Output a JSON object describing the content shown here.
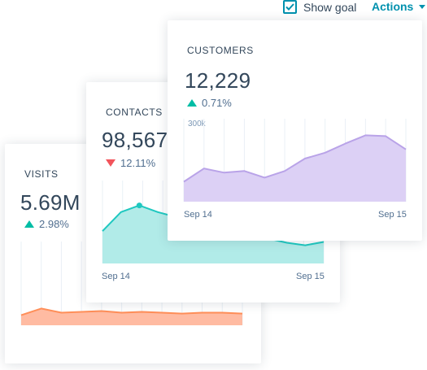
{
  "toolbar": {
    "show_goal_label": "Show goal",
    "show_goal_checked": true,
    "actions_label": "Actions"
  },
  "colors": {
    "accent": "#0091ae",
    "up": "#00bda5",
    "down": "#f2545b",
    "visits": "#ff8f59",
    "contacts": "#00bda5",
    "customers": "#b9a3e8"
  },
  "cards": {
    "visits": {
      "title": "VISITS",
      "value": "5.69M",
      "change": "2.98%",
      "direction": "up"
    },
    "contacts": {
      "title": "CONTACTS",
      "value": "98,567",
      "change": "12.11%",
      "direction": "down",
      "x_start": "Sep 14",
      "x_end": "Sep 15"
    },
    "customers": {
      "title": "CUSTOMERS",
      "value": "12,229",
      "change": "0.71%",
      "direction": "up",
      "y_top_label": "300k",
      "x_start": "Sep 14",
      "x_end": "Sep 15"
    }
  },
  "chart_data": [
    {
      "type": "area",
      "series": [
        {
          "values": [
            0.12,
            0.2,
            0.15,
            0.16,
            0.17,
            0.15,
            0.16,
            0.15,
            0.14,
            0.15,
            0.15,
            0.14
          ]
        }
      ],
      "ylim": [
        0,
        1
      ]
    },
    {
      "type": "area",
      "series": [
        {
          "values": [
            0.39,
            0.62,
            0.7,
            0.62,
            0.56,
            0.5,
            0.45,
            0.4,
            0.35,
            0.3,
            0.25,
            0.22,
            0.26
          ]
        }
      ],
      "ylim": [
        0,
        1
      ]
    },
    {
      "type": "area",
      "x_labels": [
        "Sep 14",
        "Sep 15"
      ],
      "y_tick_labels": [
        "300k"
      ],
      "series": [
        {
          "values": [
            0.24,
            0.4,
            0.35,
            0.37,
            0.29,
            0.37,
            0.52,
            0.59,
            0.7,
            0.8,
            0.79,
            0.63
          ]
        }
      ],
      "ylim": [
        0,
        1
      ]
    }
  ]
}
